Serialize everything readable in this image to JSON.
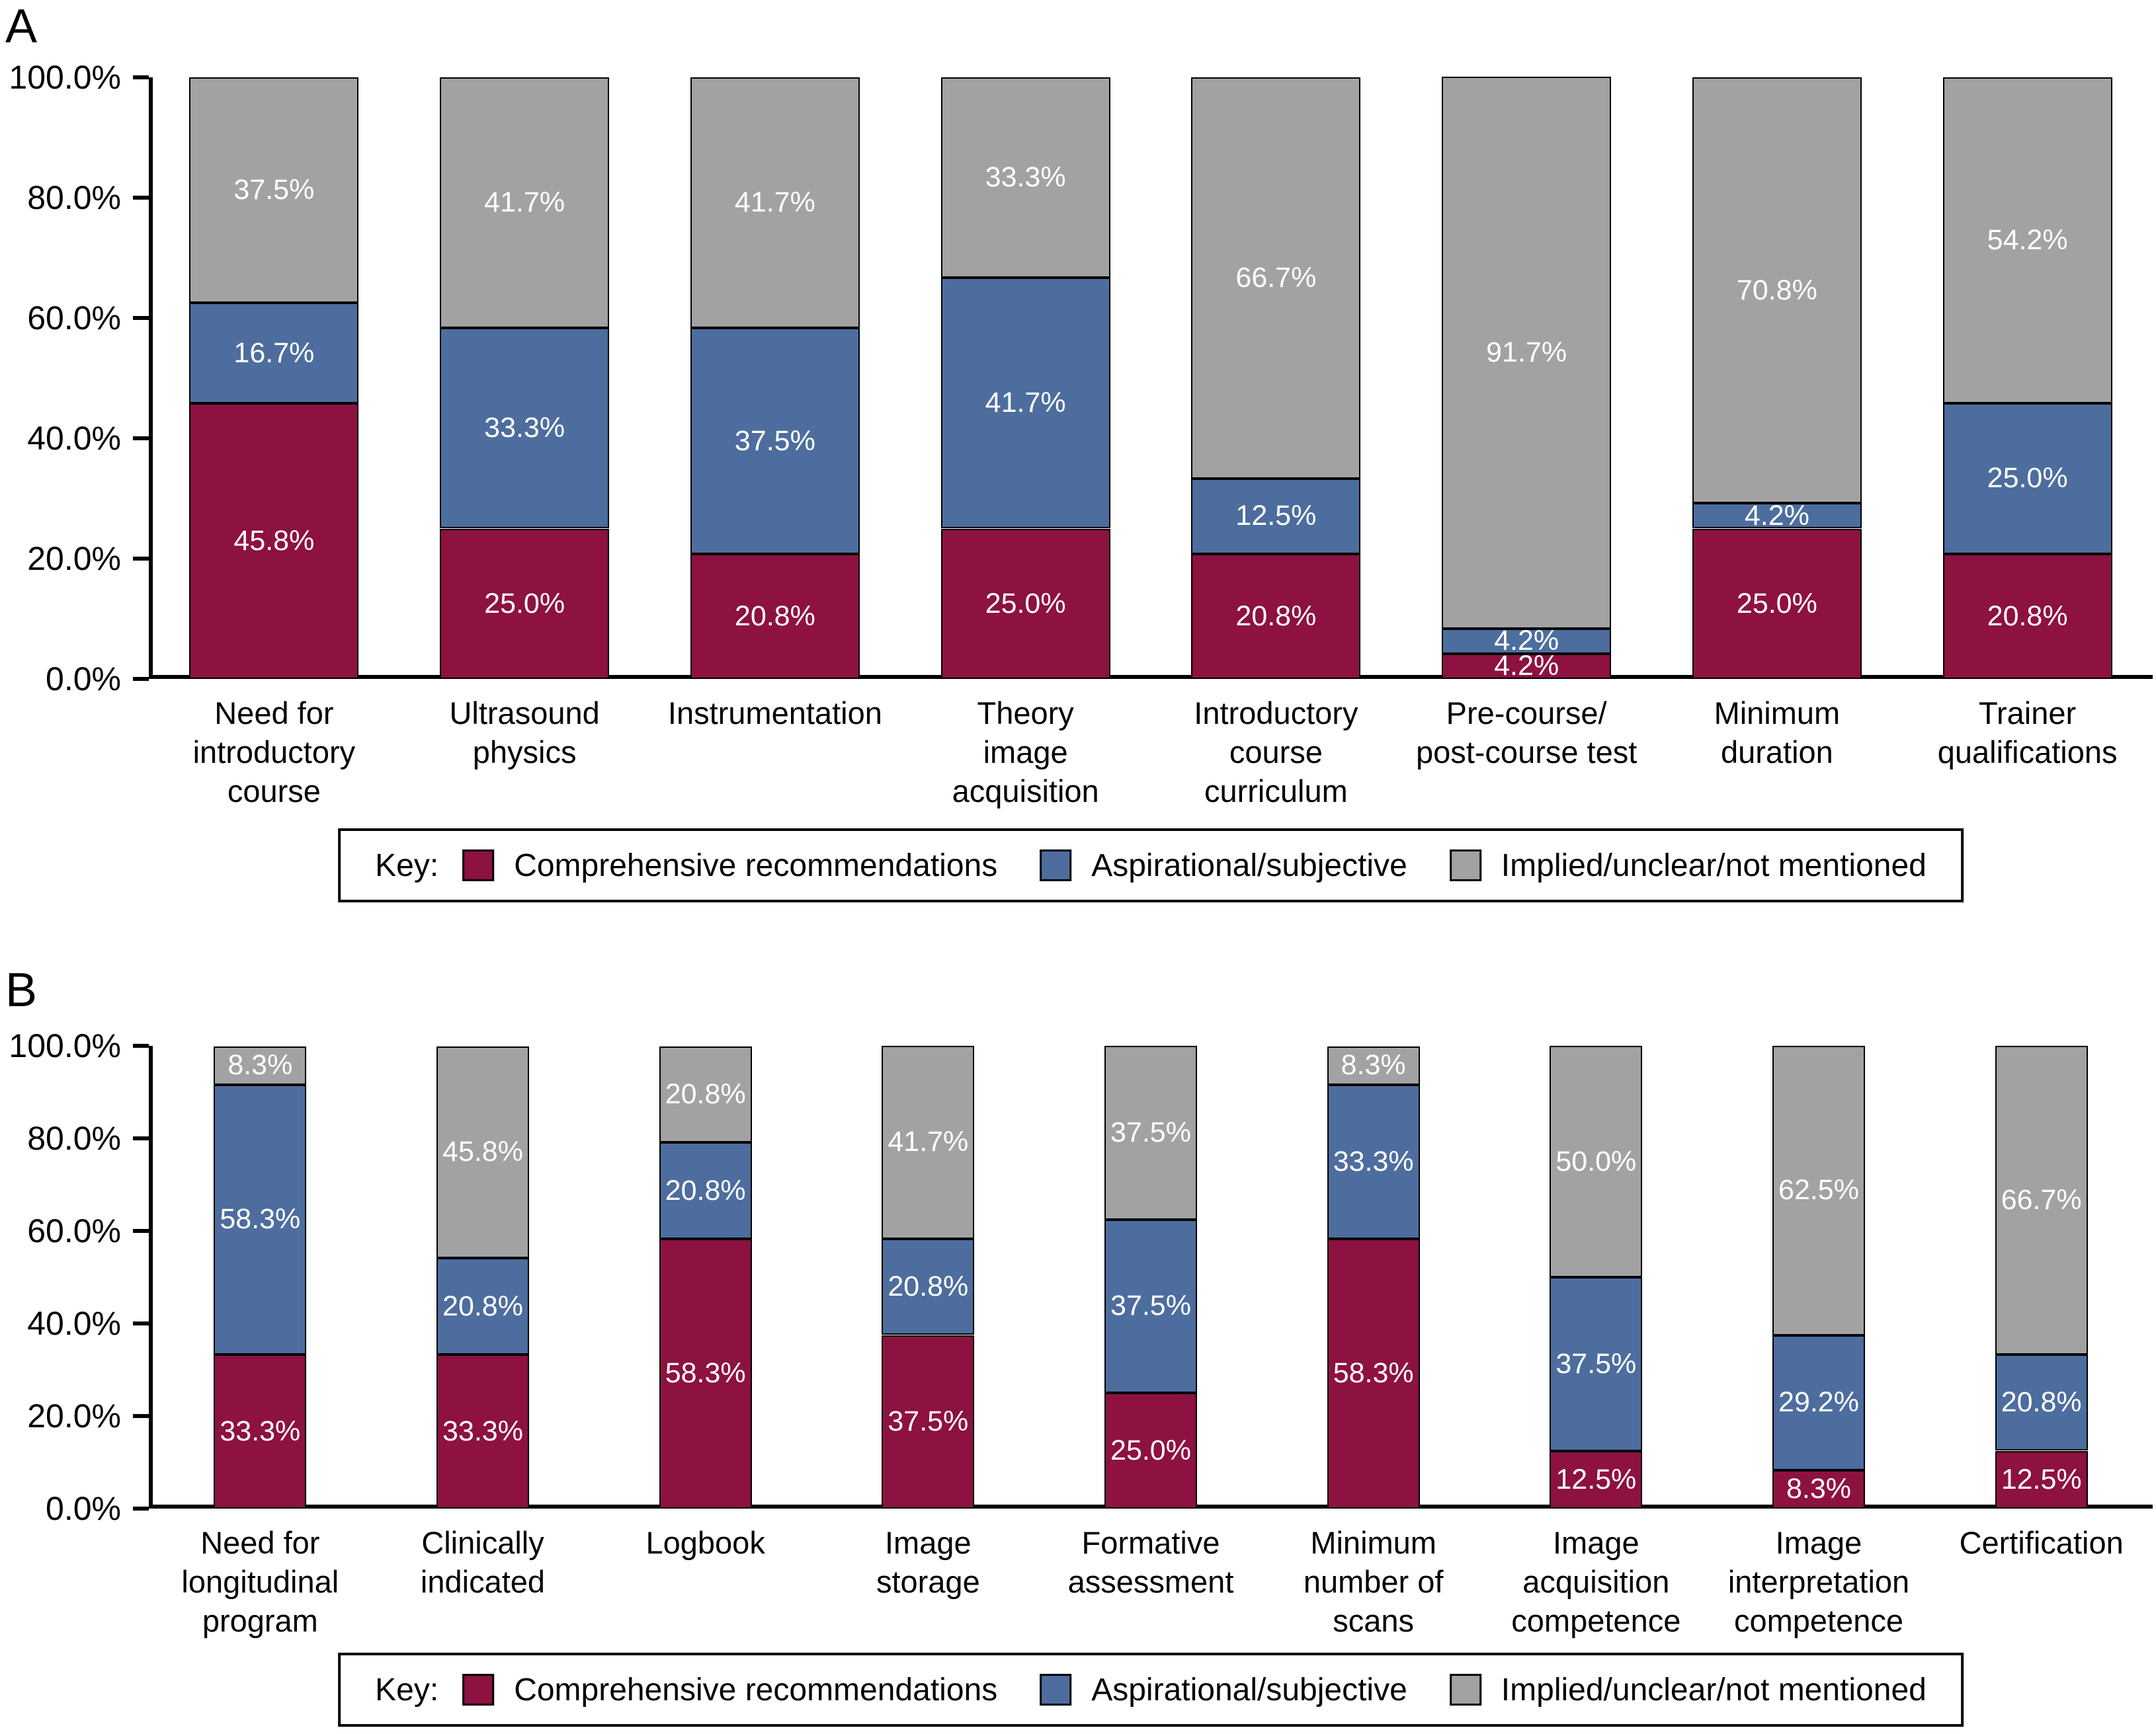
{
  "panels": [
    {
      "label": "A"
    },
    {
      "label": "B"
    }
  ],
  "legend": {
    "key_label": "Key:",
    "entries": [
      {
        "label": "Comprehensive recommendations",
        "color": "#8D1141"
      },
      {
        "label": "Aspirational/subjective",
        "color": "#4D6D9E"
      },
      {
        "label": "Implied/unclear/not mentioned",
        "color": "#A2A2A4"
      }
    ]
  },
  "chart_data": [
    {
      "panel": "A",
      "type": "bar",
      "stacked": true,
      "grid": false,
      "ylim": [
        0,
        100
      ],
      "yticks": [
        "0.0%",
        "20.0%",
        "40.0%",
        "60.0%",
        "80.0%",
        "100.0%"
      ],
      "ytick_values": [
        0,
        20,
        40,
        60,
        80,
        100
      ],
      "legend_position": "bottom",
      "categories": [
        "Need for introductory course",
        "Ultrasound physics",
        "Instrumentation",
        "Theory image acquisition",
        "Introductory course curriculum",
        "Pre-course/post-course test",
        "Minimum duration",
        "Trainer qualifications"
      ],
      "category_lines": [
        [
          "Need for",
          "introductory",
          "course"
        ],
        [
          "Ultrasound",
          "physics"
        ],
        [
          "Instrumentation"
        ],
        [
          "Theory",
          "image",
          "acquisition"
        ],
        [
          "Introductory",
          "course",
          "curriculum"
        ],
        [
          "Pre-course/",
          "post-course test"
        ],
        [
          "Minimum",
          "duration"
        ],
        [
          "Trainer",
          "qualifications"
        ]
      ],
      "series": [
        {
          "name": "Comprehensive recommendations",
          "color": "#8D1141",
          "values": [
            45.8,
            25.0,
            20.8,
            25.0,
            20.8,
            4.2,
            25.0,
            20.8
          ],
          "labels": [
            "45.8%",
            "25.0%",
            "20.8%",
            "25.0%",
            "20.8%",
            "4.2%",
            "25.0%",
            "20.8%"
          ]
        },
        {
          "name": "Aspirational/subjective",
          "color": "#4D6D9E",
          "values": [
            16.7,
            33.3,
            37.5,
            41.7,
            12.5,
            4.2,
            4.2,
            25.0
          ],
          "labels": [
            "16.7%",
            "33.3%",
            "37.5%",
            "41.7%",
            "12.5%",
            "4.2%",
            "4.2%",
            "25.0%"
          ]
        },
        {
          "name": "Implied/unclear/not mentioned",
          "color": "#A2A2A4",
          "values": [
            37.5,
            41.7,
            41.7,
            33.3,
            66.7,
            91.7,
            70.8,
            54.2
          ],
          "labels": [
            "37.5%",
            "41.7%",
            "41.7%",
            "33.3%",
            "66.7%",
            "91.7%",
            "70.8%",
            "54.2%"
          ]
        }
      ]
    },
    {
      "panel": "B",
      "type": "bar",
      "stacked": true,
      "grid": false,
      "ylim": [
        0,
        100
      ],
      "yticks": [
        "0.0%",
        "20.0%",
        "40.0%",
        "60.0%",
        "80.0%",
        "100.0%"
      ],
      "ytick_values": [
        0,
        20,
        40,
        60,
        80,
        100
      ],
      "legend_position": "bottom",
      "categories": [
        "Need for longitudinal program",
        "Clinically indicated",
        "Logbook",
        "Image storage",
        "Formative assessment",
        "Minimum number of scans",
        "Image acquisition competence",
        "Image interpretation competence",
        "Certification"
      ],
      "category_lines": [
        [
          "Need for",
          "longitudinal",
          "program"
        ],
        [
          "Clinically",
          "indicated"
        ],
        [
          "Logbook"
        ],
        [
          "Image",
          "storage"
        ],
        [
          "Formative",
          "assessment"
        ],
        [
          "Minimum",
          "number of",
          "scans"
        ],
        [
          "Image",
          "acquisition",
          "competence"
        ],
        [
          "Image",
          "interpretation",
          "competence"
        ],
        [
          "Certification"
        ]
      ],
      "series": [
        {
          "name": "Comprehensive recommendations",
          "color": "#8D1141",
          "values": [
            33.3,
            33.3,
            58.3,
            37.5,
            25.0,
            58.3,
            12.5,
            8.3,
            12.5
          ],
          "labels": [
            "33.3%",
            "33.3%",
            "58.3%",
            "37.5%",
            "25.0%",
            "58.3%",
            "12.5%",
            "8.3%",
            "12.5%"
          ]
        },
        {
          "name": "Aspirational/subjective",
          "color": "#4D6D9E",
          "values": [
            58.3,
            20.8,
            20.8,
            20.8,
            37.5,
            33.3,
            37.5,
            29.2,
            20.8
          ],
          "labels": [
            "58.3%",
            "20.8%",
            "20.8%",
            "20.8%",
            "37.5%",
            "33.3%",
            "37.5%",
            "29.2%",
            "20.8%"
          ]
        },
        {
          "name": "Implied/unclear/not mentioned",
          "color": "#A2A2A4",
          "values": [
            8.3,
            45.8,
            20.8,
            41.7,
            37.5,
            8.3,
            50.0,
            62.5,
            66.7
          ],
          "labels": [
            "8.3%",
            "45.8%",
            "20.8%",
            "41.7%",
            "37.5%",
            "8.3%",
            "50.0%",
            "62.5%",
            "66.7%"
          ]
        }
      ]
    }
  ]
}
